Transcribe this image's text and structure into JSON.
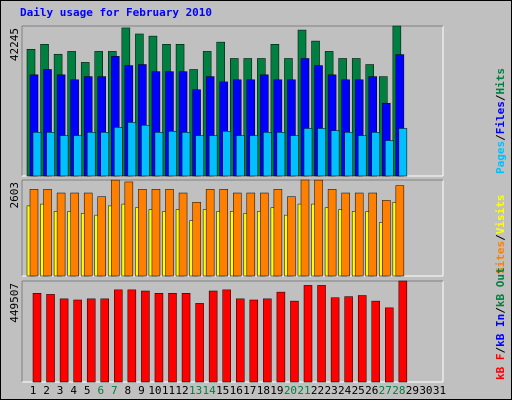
{
  "chart_data": {
    "type": "bar",
    "title": "Daily usage for February 2010",
    "title_color": "#0000ff",
    "categories": [
      "1",
      "2",
      "3",
      "4",
      "5",
      "6",
      "7",
      "8",
      "9",
      "10",
      "11",
      "12",
      "13",
      "14",
      "15",
      "16",
      "17",
      "18",
      "19",
      "20",
      "21",
      "22",
      "23",
      "24",
      "25",
      "26",
      "27",
      "28",
      "29",
      "30",
      "31"
    ],
    "category_colors": [
      "#000000",
      "#000000",
      "#000000",
      "#000000",
      "#000000",
      "#008040",
      "#008040",
      "#000000",
      "#000000",
      "#000000",
      "#000000",
      "#000000",
      "#008040",
      "#008040",
      "#000000",
      "#000000",
      "#000000",
      "#000000",
      "#000000",
      "#008040",
      "#008040",
      "#000000",
      "#000000",
      "#000000",
      "#000000",
      "#000000",
      "#008040",
      "#008040",
      "#000000",
      "#000000",
      "#000000"
    ],
    "legend_separator": "/",
    "panels": [
      {
        "ylim": [
          0,
          42245
        ],
        "yticks": [
          42245
        ],
        "grid": true,
        "series": [
          {
            "name": "Pages",
            "color": "#00c0ff",
            "values": [
              12300,
              12300,
              11400,
              11400,
              12300,
              12300,
              13700,
              15100,
              14300,
              12300,
              12600,
              12300,
              11400,
              11400,
              12600,
              11400,
              11400,
              12300,
              12300,
              11400,
              13400,
              13400,
              12800,
              12300,
              11400,
              12300,
              10000,
              13400,
              null,
              null,
              null
            ]
          },
          {
            "name": "Files",
            "color": "#0000ff",
            "values": [
              28500,
              30000,
              28500,
              27100,
              28000,
              28000,
              33700,
              31100,
              31400,
              29400,
              29400,
              29400,
              24300,
              28000,
              26500,
              27100,
              27100,
              28500,
              27100,
              27100,
              33100,
              31100,
              28500,
              27100,
              27100,
              28000,
              20500,
              34200,
              null,
              null,
              null
            ]
          },
          {
            "name": "Hits",
            "color": "#008040",
            "values": [
              35700,
              37100,
              34300,
              35100,
              32000,
              35100,
              35100,
              41700,
              40000,
              39400,
              37100,
              37100,
              30000,
              35100,
              37700,
              33100,
              33100,
              33100,
              37100,
              33100,
              41100,
              38000,
              35100,
              33100,
              33100,
              31400,
              28000,
              42245,
              null,
              null,
              null
            ]
          }
        ]
      },
      {
        "ylim": [
          0,
          2603
        ],
        "yticks": [
          2603
        ],
        "grid": true,
        "series": [
          {
            "name": "Sites",
            "color": "#ff8000",
            "values": [
              2350,
              2350,
              2250,
              2250,
              2250,
              2150,
              2600,
              2550,
              2350,
              2350,
              2350,
              2250,
              2000,
              2350,
              2350,
              2250,
              2250,
              2250,
              2350,
              2150,
              2603,
              2600,
              2350,
              2250,
              2250,
              2250,
              2050,
              2450,
              null,
              null,
              null
            ]
          },
          {
            "name": "Visits",
            "color": "#ffff00",
            "values": [
              1900,
              1950,
              1750,
              1750,
              1700,
              1650,
              1900,
              1950,
              1850,
              1800,
              1750,
              1800,
              1500,
              1800,
              1750,
              1750,
              1700,
              1750,
              1850,
              1650,
              1950,
              1950,
              1850,
              1800,
              1750,
              1750,
              1450,
              2000,
              null,
              null,
              null
            ]
          }
        ]
      },
      {
        "ylim": [
          0,
          449507
        ],
        "yticks": [
          449507
        ],
        "grid": true,
        "series": [
          {
            "name": "kB F",
            "color": "#ff0000",
            "values": [
              395000,
              390000,
              370000,
              365000,
              370000,
              370000,
              410000,
              410000,
              405000,
              395000,
              395000,
              395000,
              350000,
              405000,
              410000,
              370000,
              365000,
              370000,
              400000,
              360000,
              430000,
              430000,
              375000,
              380000,
              385000,
              360000,
              330000,
              449507,
              null,
              null,
              null
            ]
          },
          {
            "name": "kB In",
            "color": "#0000ff"
          },
          {
            "name": "kB Out",
            "color": "#008040"
          }
        ]
      }
    ]
  }
}
